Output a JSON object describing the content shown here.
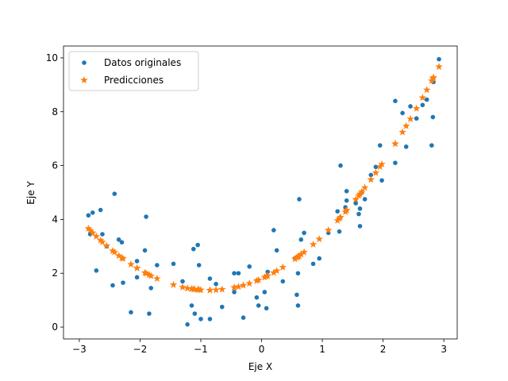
{
  "chart_data": {
    "type": "scatter",
    "x_label": "Eje X",
    "y_label": "Eje Y",
    "x": [
      -2.85,
      -2.78,
      -2.82,
      -2.72,
      -2.65,
      -2.62,
      -2.55,
      -2.45,
      -2.42,
      -2.35,
      -2.3,
      -2.28,
      -2.15,
      -2.05,
      -2.05,
      -1.9,
      -1.92,
      -1.85,
      -1.82,
      -1.72,
      -1.45,
      -1.3,
      -1.22,
      -1.15,
      -1.12,
      -1.1,
      -1.05,
      -1.03,
      -1.0,
      -0.85,
      -0.85,
      -0.75,
      -0.65,
      -0.45,
      -0.45,
      -0.38,
      -0.3,
      -0.2,
      -0.08,
      -0.05,
      0.05,
      0.08,
      0.1,
      0.2,
      0.25,
      0.35,
      0.55,
      0.58,
      0.6,
      0.6,
      0.62,
      0.65,
      0.7,
      0.85,
      0.95,
      1.1,
      1.25,
      1.28,
      1.3,
      1.38,
      1.4,
      1.4,
      1.55,
      1.6,
      1.62,
      1.62,
      1.65,
      1.7,
      1.8,
      1.88,
      1.95,
      1.98,
      2.2,
      2.2,
      2.32,
      2.38,
      2.45,
      2.55,
      2.65,
      2.72,
      2.8,
      2.82,
      2.83,
      2.92
    ],
    "series": [
      {
        "name": "Datos originales",
        "color": "#1f77b4",
        "marker": "circle",
        "values": [
          4.15,
          4.25,
          3.45,
          2.1,
          4.35,
          3.45,
          3.0,
          1.55,
          4.95,
          3.25,
          3.15,
          1.65,
          0.55,
          2.45,
          1.85,
          4.1,
          2.85,
          0.5,
          1.45,
          2.3,
          2.35,
          1.7,
          0.1,
          0.8,
          2.9,
          0.5,
          3.05,
          2.3,
          0.3,
          0.3,
          1.8,
          1.6,
          0.75,
          2.0,
          1.3,
          2.0,
          0.35,
          2.25,
          1.1,
          0.8,
          1.3,
          0.7,
          2.05,
          3.6,
          2.85,
          1.7,
          2.55,
          1.2,
          0.8,
          2.0,
          4.75,
          3.25,
          3.5,
          2.35,
          2.55,
          3.5,
          4.3,
          3.55,
          6.0,
          4.45,
          5.05,
          4.7,
          4.6,
          4.2,
          3.75,
          4.4,
          5.0,
          4.75,
          5.65,
          5.95,
          6.75,
          5.45,
          8.4,
          6.1,
          7.95,
          6.7,
          8.2,
          7.75,
          8.25,
          8.45,
          6.75,
          7.8,
          9.1,
          9.95
        ]
      },
      {
        "name": "Predicciones",
        "color": "#ff7f0e",
        "marker": "star",
        "values": [
          3.66,
          3.5,
          3.59,
          3.37,
          3.22,
          3.16,
          3.02,
          2.83,
          2.78,
          2.65,
          2.57,
          2.54,
          2.33,
          2.19,
          2.19,
          1.99,
          2.02,
          1.94,
          1.9,
          1.8,
          1.57,
          1.48,
          1.44,
          1.42,
          1.41,
          1.4,
          1.39,
          1.39,
          1.38,
          1.37,
          1.37,
          1.38,
          1.4,
          1.47,
          1.47,
          1.5,
          1.55,
          1.62,
          1.72,
          1.75,
          1.85,
          1.88,
          1.91,
          2.02,
          2.09,
          2.22,
          2.53,
          2.58,
          2.61,
          2.61,
          2.64,
          2.7,
          2.78,
          3.07,
          3.27,
          3.6,
          3.96,
          4.03,
          4.08,
          4.28,
          4.34,
          4.34,
          4.74,
          4.88,
          4.94,
          4.94,
          5.03,
          5.18,
          5.48,
          5.73,
          5.96,
          6.05,
          6.81,
          6.81,
          7.24,
          7.47,
          7.73,
          8.12,
          8.52,
          8.81,
          9.15,
          9.23,
          9.27,
          9.67
        ]
      }
    ],
    "xlim": [
      -3.26,
      3.22
    ],
    "ylim": [
      -0.44,
      10.44
    ],
    "xticks": [
      {
        "value": -3,
        "label": "−3"
      },
      {
        "value": -2,
        "label": "−2"
      },
      {
        "value": -1,
        "label": "−1"
      },
      0,
      1,
      2,
      3
    ],
    "yticks": [
      0,
      2,
      4,
      6,
      8,
      10
    ],
    "grid": false,
    "legend": "upper-left"
  }
}
